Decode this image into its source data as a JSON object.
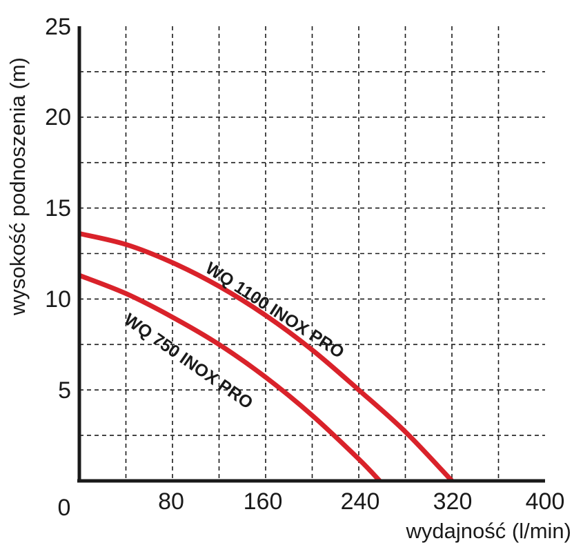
{
  "chart_data": {
    "type": "line",
    "xlabel": "wydajność (l/min)",
    "ylabel": "wysokość podnoszenia (m)",
    "xlim": [
      0,
      400
    ],
    "ylim": [
      0,
      25
    ],
    "x_ticks": [
      "0",
      "80",
      "160",
      "240",
      "320",
      "400"
    ],
    "y_ticks": [
      "5",
      "10",
      "15",
      "20",
      "25"
    ],
    "grid": "dashed, every 40 l/min and 2.5 m",
    "series": [
      {
        "name": "WQ 1100 INOX PRO",
        "color": "#d9222a",
        "x": [
          0,
          40,
          80,
          120,
          160,
          200,
          240,
          280,
          320
        ],
        "y": [
          13.6,
          13.0,
          12.0,
          10.7,
          9.1,
          7.2,
          5.0,
          2.7,
          0.0
        ]
      },
      {
        "name": "WQ 750 INOX PRO",
        "color": "#d9222a",
        "x": [
          0,
          40,
          80,
          120,
          160,
          200,
          240,
          258
        ],
        "y": [
          11.3,
          10.3,
          9.0,
          7.5,
          5.7,
          3.6,
          1.2,
          0.0
        ]
      }
    ]
  }
}
